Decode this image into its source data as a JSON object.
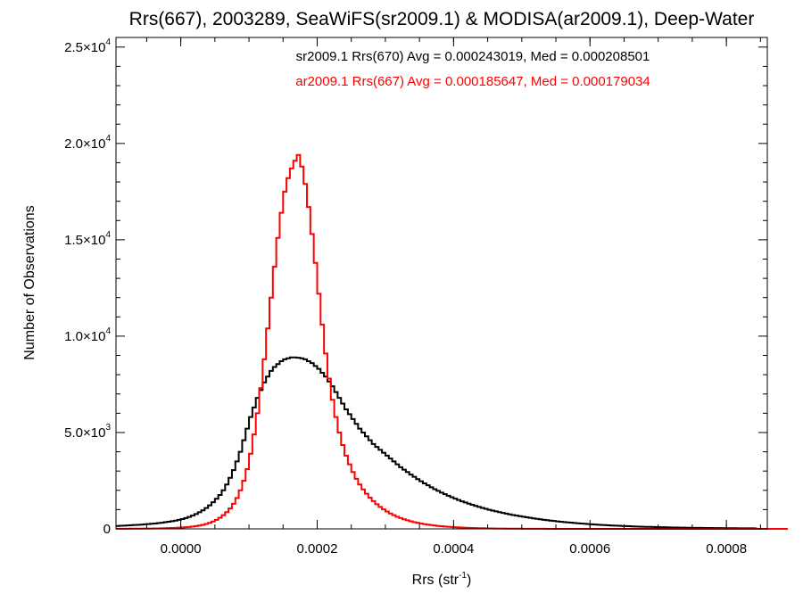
{
  "chart_data": {
    "type": "histogram-step",
    "title": "Rrs(667), 2003289, SeaWiFS(sr2009.1) & MODISA(ar2009.1), Deep-Water",
    "xlabel": "Rrs (str",
    "xlabel_sup": "-1",
    "xlabel_end": ")",
    "ylabel": "Number of Observations",
    "xlim": [
      -9.5e-05,
      0.00086
    ],
    "ylim": [
      0,
      25500
    ],
    "x_ticks": [
      {
        "value": 0.0,
        "label": "0.0000"
      },
      {
        "value": 0.0002,
        "label": "0.0002"
      },
      {
        "value": 0.0004,
        "label": "0.0004"
      },
      {
        "value": 0.0006,
        "label": "0.0006"
      },
      {
        "value": 0.0008,
        "label": "0.0008"
      }
    ],
    "y_ticks": [
      {
        "value": 0,
        "label": "0",
        "exp": ""
      },
      {
        "value": 5000,
        "label": "5.0×10",
        "exp": "3"
      },
      {
        "value": 10000,
        "label": "1.0×10",
        "exp": "4"
      },
      {
        "value": 15000,
        "label": "1.5×10",
        "exp": "4"
      },
      {
        "value": 20000,
        "label": "2.0×10",
        "exp": "4"
      },
      {
        "value": 25000,
        "label": "2.5×10",
        "exp": "4"
      }
    ],
    "annotations": [
      {
        "text": "sr2009.1 Rrs(670) Avg = 0.000243019, Med = 0.000208501",
        "color": "#000000"
      },
      {
        "text": "ar2009.1 Rrs(667) Avg = 0.000185647, Med = 0.000179034",
        "color": "#ff0000"
      }
    ],
    "bin_width": 5e-06,
    "series": [
      {
        "color": "#000000",
        "stroke_width": 2,
        "x_start": -9.5e-05,
        "values": [
          150,
          160,
          170,
          180,
          190,
          200,
          210,
          220,
          235,
          250,
          265,
          280,
          300,
          320,
          345,
          370,
          400,
          430,
          470,
          510,
          560,
          620,
          690,
          770,
          860,
          960,
          1080,
          1220,
          1380,
          1560,
          1760,
          2000,
          2300,
          2650,
          3050,
          3500,
          4000,
          4600,
          5200,
          5800,
          6300,
          6800,
          7200,
          7600,
          7900,
          8200,
          8400,
          8550,
          8700,
          8800,
          8850,
          8900,
          8900,
          8880,
          8850,
          8800,
          8700,
          8600,
          8450,
          8300,
          8100,
          7900,
          7650,
          7400,
          7100,
          6800,
          6500,
          6200,
          5950,
          5700,
          5450,
          5200,
          5000,
          4800,
          4600,
          4400,
          4250,
          4100,
          3950,
          3800,
          3650,
          3500,
          3350,
          3200,
          3070,
          2950,
          2820,
          2700,
          2580,
          2470,
          2360,
          2260,
          2160,
          2060,
          1970,
          1880,
          1800,
          1720,
          1640,
          1570,
          1500,
          1430,
          1370,
          1310,
          1250,
          1190,
          1140,
          1090,
          1040,
          990,
          950,
          910,
          870,
          830,
          790,
          750,
          720,
          690,
          660,
          630,
          600,
          570,
          545,
          520,
          495,
          470,
          450,
          430,
          410,
          390,
          372,
          355,
          338,
          322,
          306,
          292,
          278,
          264,
          251,
          239,
          227,
          216,
          205,
          195,
          185,
          176,
          167,
          159,
          151,
          144,
          137,
          130,
          124,
          118,
          112,
          107,
          102,
          97,
          92,
          88,
          84,
          80,
          76,
          72,
          69,
          66,
          63,
          60,
          57,
          54,
          52,
          50,
          48,
          46,
          44,
          42,
          40,
          38,
          36,
          34,
          33,
          32,
          31,
          30,
          29,
          28,
          27,
          26
        ]
      },
      {
        "color": "#ff0000",
        "stroke_width": 2,
        "x_start": -9.5e-05,
        "values": [
          5,
          6,
          7,
          8,
          9,
          10,
          12,
          14,
          16,
          18,
          20,
          23,
          26,
          30,
          35,
          40,
          46,
          53,
          62,
          72,
          85,
          100,
          120,
          145,
          175,
          210,
          255,
          310,
          380,
          470,
          580,
          710,
          870,
          1060,
          1300,
          1600,
          2000,
          2500,
          3100,
          3900,
          4900,
          6000,
          7300,
          8800,
          10400,
          12000,
          13600,
          15100,
          16400,
          17500,
          18200,
          18700,
          19100,
          19400,
          18800,
          17900,
          16700,
          15300,
          13800,
          12200,
          10600,
          9100,
          7800,
          6700,
          5800,
          5000,
          4350,
          3800,
          3350,
          2950,
          2600,
          2300,
          2050,
          1820,
          1620,
          1440,
          1280,
          1140,
          1010,
          900,
          800,
          710,
          630,
          560,
          500,
          445,
          395,
          350,
          310,
          275,
          245,
          218,
          194,
          172,
          153,
          136,
          121,
          108,
          96,
          85,
          76,
          68,
          60,
          53,
          47,
          42,
          37,
          33,
          29,
          26,
          23,
          20,
          18,
          16,
          14,
          12,
          11,
          10,
          9,
          8,
          7,
          6,
          5,
          5,
          4,
          4,
          3,
          3,
          2,
          2,
          2,
          1,
          1,
          1,
          1,
          1,
          1,
          0,
          0,
          0,
          0,
          0,
          0,
          0,
          0,
          0,
          0,
          0,
          0,
          0,
          0,
          0,
          0,
          0,
          0,
          0,
          0,
          0,
          0,
          0,
          0,
          0,
          0,
          0,
          0,
          0,
          0,
          0,
          0,
          0,
          0,
          0,
          0,
          0,
          0,
          0,
          0,
          0,
          0,
          0,
          0,
          0,
          0,
          0,
          0,
          0,
          0,
          0,
          0,
          0,
          0,
          0,
          0,
          0,
          0,
          0,
          0
        ]
      }
    ]
  }
}
